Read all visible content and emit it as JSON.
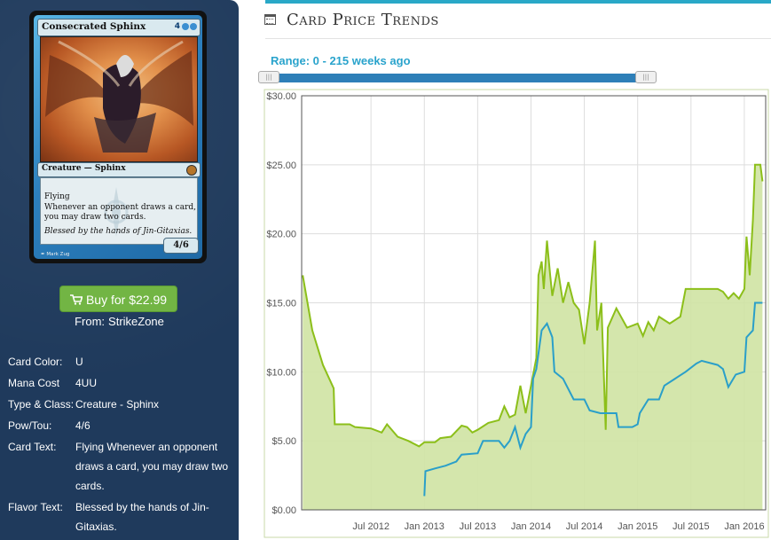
{
  "card": {
    "name": "Consecrated Sphinx",
    "mana_symbols": "4UU",
    "type_line": "Creature — Sphinx",
    "rules_1": "Flying",
    "rules_2": "Whenever an opponent draws a card, you may draw two cards.",
    "flavor": "Blessed by the hands of Jin-Gitaxias.",
    "pt": "4/6",
    "artist": "Mark Zug"
  },
  "buy": {
    "label": "Buy for $22.99",
    "from_label": "From:",
    "from_store": "StrikeZone"
  },
  "attributes": [
    {
      "key": "Card Color:",
      "value": "U"
    },
    {
      "key": "Mana Cost",
      "value": "4UU"
    },
    {
      "key": "Type & Class:",
      "value": "Creature - Sphinx"
    },
    {
      "key": "Pow/Tou:",
      "value": "4/6"
    },
    {
      "key": "Card Text:",
      "value": "Flying Whenever an opponent draws a card, you may draw two cards."
    },
    {
      "key": "Flavor Text:",
      "value": "Blessed by the hands of Jin-Gitaxias."
    }
  ],
  "section": {
    "title": "Card Price Trends",
    "icon": "calendar-icon"
  },
  "range": {
    "label": "Range: 0 - 215 weeks ago",
    "min_weeks": 0,
    "max_weeks": 215
  },
  "colors": {
    "accent": "#29a8c7",
    "button_green": "#72b544",
    "left_panel_bg": "#1f3a5c",
    "series_retail": "#8cbf1a",
    "series_retail_fill": "#cfe3a3",
    "series_buylist": "#2a9fc9"
  },
  "chart_data": {
    "type": "line",
    "title": "",
    "xlabel": "",
    "ylabel": "",
    "ylim": [
      0,
      30
    ],
    "yticks": [
      "$0.00",
      "$5.00",
      "$10.00",
      "$15.00",
      "$20.00",
      "$25.00",
      "$30.00"
    ],
    "xticks": [
      "Jul 2012",
      "Jan 2013",
      "Jul 2013",
      "Jan 2014",
      "Jul 2014",
      "Jan 2015",
      "Jul 2015",
      "Jan 2016"
    ],
    "xtick_values": [
      2012.5,
      2013.0,
      2013.5,
      2014.0,
      2014.5,
      2015.0,
      2015.5,
      2016.0
    ],
    "xlim": [
      2011.85,
      2016.2
    ],
    "grid": true,
    "series": [
      {
        "area": true,
        "points": [
          [
            2011.86,
            17.0
          ],
          [
            2011.95,
            13.0
          ],
          [
            2012.05,
            10.5
          ],
          [
            2012.15,
            8.8
          ],
          [
            2012.16,
            6.2
          ],
          [
            2012.3,
            6.2
          ],
          [
            2012.35,
            6.0
          ],
          [
            2012.5,
            5.9
          ],
          [
            2012.6,
            5.6
          ],
          [
            2012.65,
            6.2
          ],
          [
            2012.75,
            5.3
          ],
          [
            2012.85,
            5.0
          ],
          [
            2012.95,
            4.6
          ],
          [
            2013.0,
            4.9
          ],
          [
            2013.1,
            4.9
          ],
          [
            2013.15,
            5.2
          ],
          [
            2013.25,
            5.3
          ],
          [
            2013.35,
            6.1
          ],
          [
            2013.4,
            6.0
          ],
          [
            2013.45,
            5.6
          ],
          [
            2013.5,
            5.8
          ],
          [
            2013.6,
            6.3
          ],
          [
            2013.7,
            6.5
          ],
          [
            2013.75,
            7.5
          ],
          [
            2013.8,
            6.7
          ],
          [
            2013.85,
            6.9
          ],
          [
            2013.9,
            9.0
          ],
          [
            2013.95,
            7.0
          ],
          [
            2014.0,
            9.0
          ],
          [
            2014.05,
            11.0
          ],
          [
            2014.07,
            17.0
          ],
          [
            2014.1,
            18.0
          ],
          [
            2014.12,
            16.0
          ],
          [
            2014.15,
            19.5
          ],
          [
            2014.18,
            17.0
          ],
          [
            2014.2,
            15.5
          ],
          [
            2014.25,
            17.5
          ],
          [
            2014.3,
            15.0
          ],
          [
            2014.35,
            16.5
          ],
          [
            2014.4,
            15.0
          ],
          [
            2014.45,
            14.5
          ],
          [
            2014.5,
            12.0
          ],
          [
            2014.55,
            15.0
          ],
          [
            2014.6,
            19.5
          ],
          [
            2014.62,
            13.0
          ],
          [
            2014.66,
            15.0
          ],
          [
            2014.7,
            5.8
          ],
          [
            2014.72,
            13.2
          ],
          [
            2014.8,
            14.6
          ],
          [
            2014.9,
            13.2
          ],
          [
            2015.0,
            13.5
          ],
          [
            2015.05,
            12.6
          ],
          [
            2015.1,
            13.6
          ],
          [
            2015.15,
            13.0
          ],
          [
            2015.2,
            14.0
          ],
          [
            2015.3,
            13.5
          ],
          [
            2015.4,
            14.0
          ],
          [
            2015.45,
            16.0
          ],
          [
            2015.6,
            16.0
          ],
          [
            2015.75,
            16.0
          ],
          [
            2015.8,
            15.8
          ],
          [
            2015.85,
            15.3
          ],
          [
            2015.9,
            15.7
          ],
          [
            2015.95,
            15.3
          ],
          [
            2016.0,
            16.0
          ],
          [
            2016.02,
            19.8
          ],
          [
            2016.05,
            17.0
          ],
          [
            2016.08,
            21.0
          ],
          [
            2016.1,
            25.0
          ],
          [
            2016.15,
            25.0
          ],
          [
            2016.17,
            23.8
          ]
        ]
      },
      {
        "area": false,
        "points": [
          [
            2013.0,
            1.0
          ],
          [
            2013.01,
            2.8
          ],
          [
            2013.1,
            3.0
          ],
          [
            2013.2,
            3.2
          ],
          [
            2013.3,
            3.5
          ],
          [
            2013.35,
            4.0
          ],
          [
            2013.5,
            4.1
          ],
          [
            2013.55,
            5.0
          ],
          [
            2013.7,
            5.0
          ],
          [
            2013.75,
            4.5
          ],
          [
            2013.8,
            5.0
          ],
          [
            2013.85,
            6.0
          ],
          [
            2013.9,
            4.5
          ],
          [
            2013.95,
            5.5
          ],
          [
            2014.0,
            6.0
          ],
          [
            2014.02,
            9.5
          ],
          [
            2014.05,
            10.2
          ],
          [
            2014.1,
            13.0
          ],
          [
            2014.15,
            13.5
          ],
          [
            2014.2,
            12.5
          ],
          [
            2014.22,
            10.0
          ],
          [
            2014.3,
            9.5
          ],
          [
            2014.4,
            8.0
          ],
          [
            2014.5,
            8.0
          ],
          [
            2014.55,
            7.2
          ],
          [
            2014.65,
            7.0
          ],
          [
            2014.8,
            7.0
          ],
          [
            2014.82,
            6.0
          ],
          [
            2014.95,
            6.0
          ],
          [
            2015.0,
            6.2
          ],
          [
            2015.02,
            7.0
          ],
          [
            2015.1,
            8.0
          ],
          [
            2015.2,
            8.0
          ],
          [
            2015.25,
            9.0
          ],
          [
            2015.35,
            9.5
          ],
          [
            2015.45,
            10.0
          ],
          [
            2015.55,
            10.6
          ],
          [
            2015.6,
            10.8
          ],
          [
            2015.75,
            10.5
          ],
          [
            2015.8,
            10.2
          ],
          [
            2015.85,
            8.9
          ],
          [
            2015.92,
            9.8
          ],
          [
            2016.0,
            10.0
          ],
          [
            2016.02,
            12.5
          ],
          [
            2016.08,
            13.0
          ],
          [
            2016.1,
            15.0
          ],
          [
            2016.17,
            15.0
          ]
        ]
      }
    ]
  }
}
